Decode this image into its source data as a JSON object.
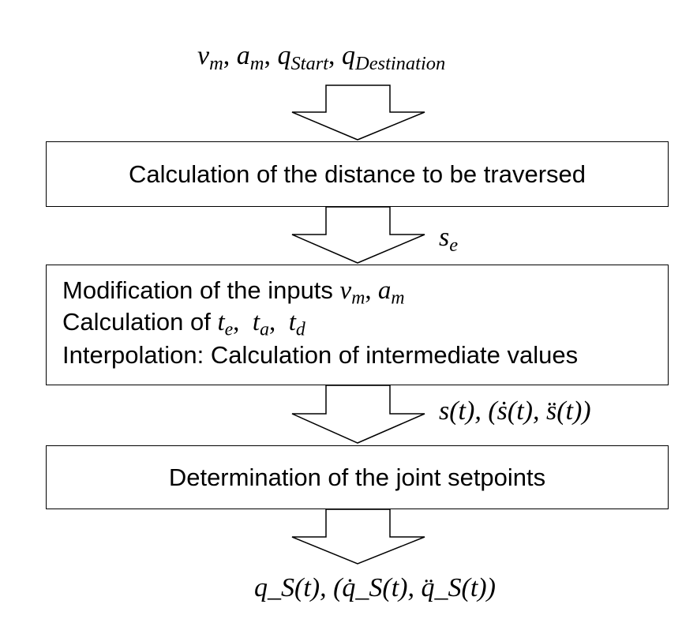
{
  "inputs": {
    "v": "v",
    "v_sub": "m",
    "a": "a",
    "a_sub": "m",
    "q_start": "q",
    "q_start_sub": "Start",
    "q_dest": "q",
    "q_dest_sub": "Destination",
    "sep": ", "
  },
  "steps": [
    {
      "text": "Calculation of the distance to be traversed"
    },
    {
      "line1": "Modification of the inputs ",
      "line2": "Calculation of ",
      "line3": "Interpolation: Calculation of intermediate values"
    },
    {
      "text": "Determination of the joint setpoints"
    }
  ],
  "arrow_labels": {
    "se": "s",
    "se_sub": "e",
    "trajectory": "s(t), (ṡ(t), s̈(t))"
  },
  "outputs": {
    "text": "q_S(t), (q̇_S(t), q̈_S(t))"
  }
}
